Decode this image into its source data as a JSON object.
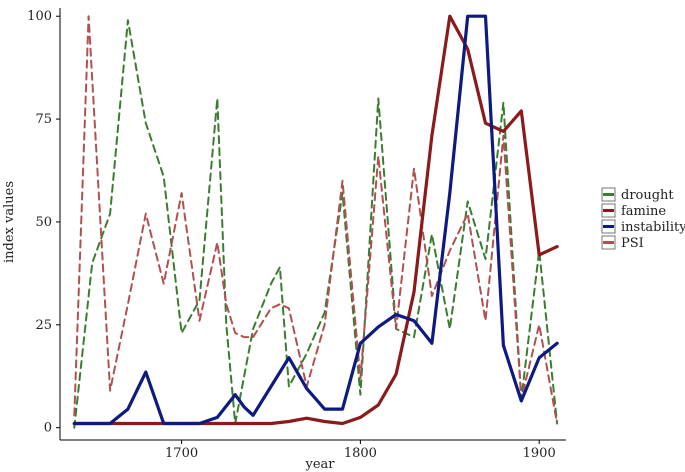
{
  "chart_data": {
    "type": "line",
    "xlabel": "year",
    "ylabel": "index values",
    "xlim": [
      1632,
      1915
    ],
    "ylim": [
      -3,
      102
    ],
    "x_ticks": [
      1700,
      1800,
      1900
    ],
    "y_ticks": [
      0,
      25,
      50,
      75,
      100
    ],
    "x_tick_labels": [
      "1700",
      "1800",
      "1900"
    ],
    "y_tick_labels": [
      "0",
      "25",
      "50",
      "75",
      "100"
    ],
    "grid": false,
    "legend_position": "right",
    "series": [
      {
        "name": "drought",
        "color": "#3a7d2e",
        "style": "dashed",
        "x": [
          1640,
          1650,
          1660,
          1670,
          1680,
          1690,
          1700,
          1710,
          1720,
          1725,
          1730,
          1740,
          1750,
          1755,
          1760,
          1770,
          1780,
          1790,
          1800,
          1810,
          1820,
          1830,
          1840,
          1850,
          1860,
          1870,
          1880,
          1890,
          1900,
          1910
        ],
        "y": [
          0,
          40,
          52,
          99,
          74,
          61,
          23,
          31,
          80,
          25,
          1,
          24,
          35,
          39,
          10,
          18,
          28,
          57,
          8,
          80,
          24,
          22,
          47,
          24,
          55,
          41,
          79,
          7,
          43,
          1
        ]
      },
      {
        "name": "famine",
        "color": "#8b1a1a",
        "style": "solid",
        "x": [
          1640,
          1650,
          1660,
          1670,
          1680,
          1690,
          1700,
          1710,
          1720,
          1730,
          1740,
          1750,
          1760,
          1770,
          1780,
          1790,
          1800,
          1810,
          1820,
          1830,
          1840,
          1850,
          1860,
          1870,
          1880,
          1890,
          1900,
          1910
        ],
        "y": [
          1,
          1,
          1,
          1,
          1,
          1,
          1,
          1,
          1,
          1,
          1,
          1,
          1.5,
          2.3,
          1.5,
          1,
          2.5,
          5.5,
          13,
          33,
          71,
          100,
          92,
          74,
          72,
          77,
          42,
          44
        ]
      },
      {
        "name": "instability",
        "color": "#0d1a80",
        "style": "solid",
        "x": [
          1640,
          1650,
          1660,
          1670,
          1680,
          1690,
          1700,
          1710,
          1720,
          1730,
          1735,
          1740,
          1750,
          1760,
          1770,
          1780,
          1790,
          1800,
          1810,
          1820,
          1830,
          1840,
          1850,
          1860,
          1870,
          1880,
          1890,
          1900,
          1910
        ],
        "y": [
          1,
          1,
          1,
          4.5,
          13.5,
          1,
          1,
          1,
          2.5,
          8,
          5,
          3,
          10,
          17,
          9.5,
          4.5,
          4.5,
          20.5,
          24.5,
          27.5,
          26,
          20.5,
          57,
          100,
          100,
          20,
          6.5,
          17,
          20.5
        ]
      },
      {
        "name": "PSI",
        "color": "#b05050",
        "style": "dashed",
        "x": [
          1640,
          1648,
          1660,
          1670,
          1680,
          1690,
          1700,
          1710,
          1720,
          1725,
          1730,
          1735,
          1740,
          1750,
          1755,
          1760,
          1770,
          1780,
          1790,
          1800,
          1810,
          1820,
          1830,
          1840,
          1850,
          1860,
          1870,
          1880,
          1890,
          1900,
          1910
        ],
        "y": [
          3,
          100,
          9,
          30,
          52,
          35,
          57,
          26,
          45,
          30,
          23,
          22,
          22,
          29,
          30,
          29,
          10,
          25,
          60,
          12,
          66,
          24,
          63,
          32,
          43,
          52,
          26,
          71,
          7,
          25,
          1
        ]
      }
    ]
  }
}
